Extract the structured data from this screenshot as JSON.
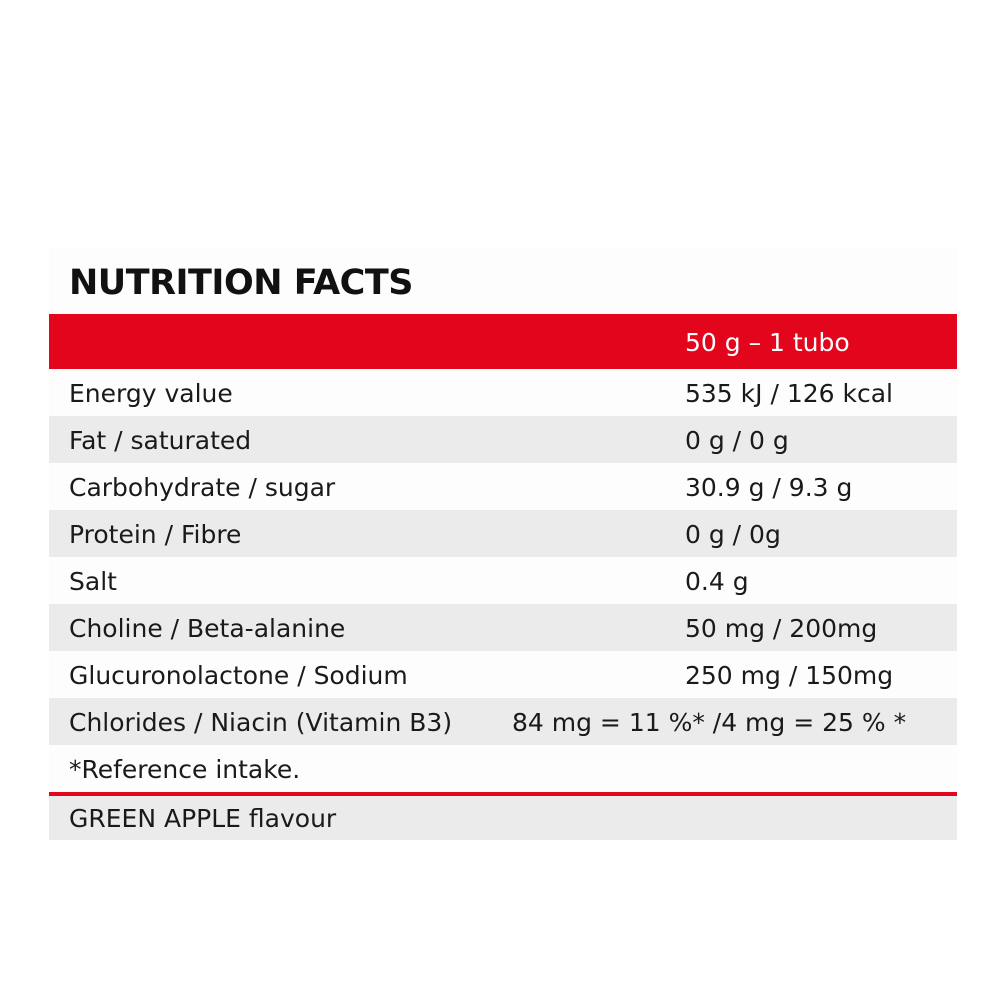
{
  "title": "NUTRITION FACTS",
  "header": {
    "serving": "50 g – 1 tubo"
  },
  "rows": [
    {
      "label": "Energy value",
      "value": "535 kJ / 126 kcal"
    },
    {
      "label": "Fat / saturated",
      "value": "0 g / 0 g"
    },
    {
      "label": "Carbohydrate / sugar",
      "value": "30.9 g / 9.3 g"
    },
    {
      "label": "Protein / Fibre",
      "value": "0 g / 0g"
    },
    {
      "label": "Salt",
      "value": "0.4 g"
    },
    {
      "label": "Choline / Beta-alanine",
      "value": "50 mg / 200mg"
    },
    {
      "label": "Glucuronolactone / Sodium",
      "value": "250 mg / 150mg"
    },
    {
      "label": "Chlorides / Niacin (Vitamin B3)",
      "value": "84 mg = 11 %* /4 mg = 25 % *"
    }
  ],
  "footnote": "*Reference intake.",
  "flavour": "GREEN APPLE flavour",
  "colors": {
    "accent": "#e3051c",
    "row_shade": "#ebebeb",
    "background": "#ffffff"
  }
}
